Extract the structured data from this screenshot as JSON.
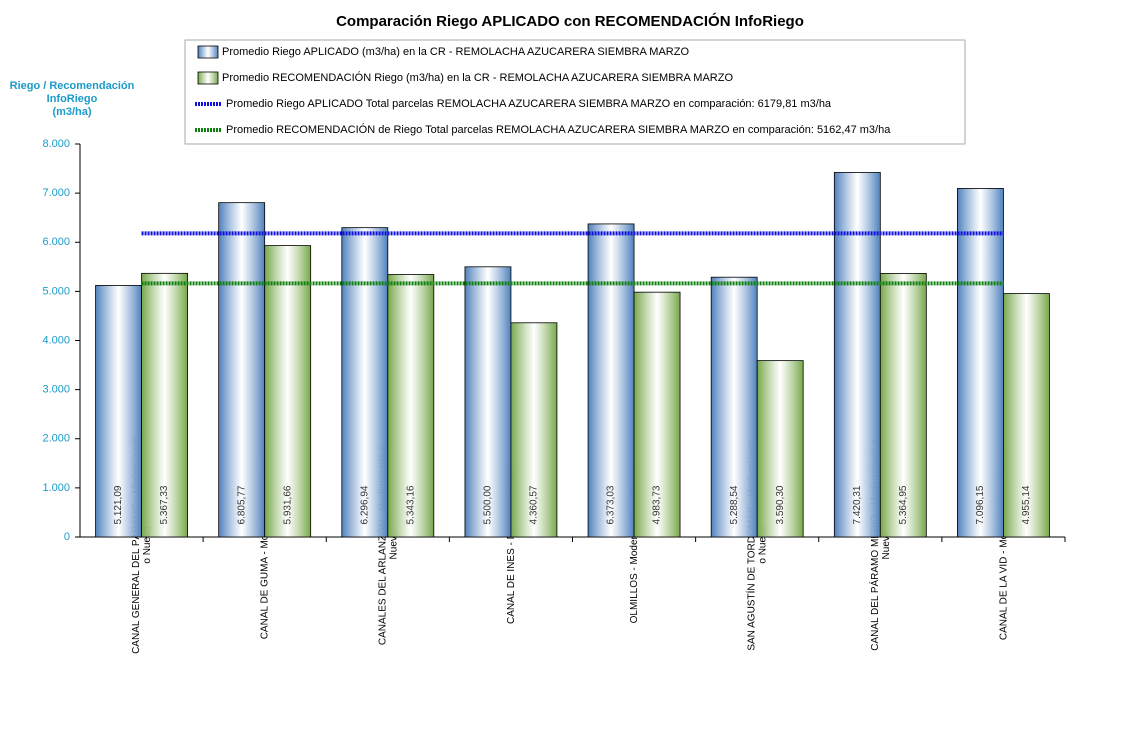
{
  "chart_data": {
    "type": "bar",
    "title": "Comparación Riego APLICADO con RECOMENDACIÓN InfoRiego",
    "ylabel": [
      "Riego / Recomendación",
      "InfoRiego",
      "(m3/ha)"
    ],
    "categories": [
      "CANAL GENERAL DEL PÁRAMO - Modernizado o Nuevo",
      "CANAL DE GUMA - Modernizado o Nuevo",
      "CANALES DEL ARLANZÓN - Modernizado o Nuevo",
      "CANAL DE INES - No Modernizado",
      "OLMILLOS - Modernizado o Nuevo",
      "SAN AGUSTÍN DE TORDÓMAR - Modernizado o Nuevo",
      "CANAL DEL PÁRAMO MEDIO - Modernizado o Nuevo",
      "CANAL DE LA VID - Modernizado o Nuevo"
    ],
    "series": [
      {
        "name": "Promedio Riego APLICADO (m3/ha) en la CR - REMOLACHA AZUCARERA SIEMBRA MARZO",
        "color": "#4f81bd",
        "values": [
          5121.09,
          6805.77,
          6296.94,
          5500.0,
          6373.03,
          5288.54,
          7420.31,
          7096.15
        ],
        "value_labels": [
          "5.121,09",
          "6.805,77",
          "6.296,94",
          "5.500,00",
          "6.373,03",
          "5.288,54",
          "7.420,31",
          "7.096,15"
        ]
      },
      {
        "name": "Promedio RECOMENDACIÓN Riego (m3/ha) en la CR - REMOLACHA AZUCARERA SIEMBRA MARZO",
        "color": "#77a84a",
        "values": [
          5367.33,
          5931.66,
          5343.16,
          4360.57,
          4983.73,
          3590.3,
          5364.95,
          4955.14
        ],
        "value_labels": [
          "5.367,33",
          "5.931,66",
          "5.343,16",
          "4.360,57",
          "4.983,73",
          "3.590,30",
          "5.364,95",
          "4.955,14"
        ]
      }
    ],
    "reference_lines": [
      {
        "name": "Promedio Riego APLICADO Total parcelas REMOLACHA AZUCARERA SIEMBRA MARZO en comparación: 6179,81 m3/ha",
        "value": 6179.81,
        "color": "#1010e0"
      },
      {
        "name": "Promedio RECOMENDACIÓN de Riego Total parcelas REMOLACHA AZUCARERA SIEMBRA MARZO en comparación: 5162,47 m3/ha",
        "value": 5162.47,
        "color": "#108010"
      }
    ],
    "ylim": [
      0,
      8000
    ],
    "yticks": [
      0,
      {
        "value": 1000,
        "label": "1.000"
      },
      {
        "value": 2000,
        "label": "2.000"
      },
      {
        "value": 3000,
        "label": "3.000"
      },
      {
        "value": 4000,
        "label": "4.000"
      },
      {
        "value": 5000,
        "label": "5.000"
      },
      {
        "value": 6000,
        "label": "6.000"
      },
      {
        "value": 7000,
        "label": "7.000"
      },
      {
        "value": 8000,
        "label": "8.000"
      }
    ]
  }
}
